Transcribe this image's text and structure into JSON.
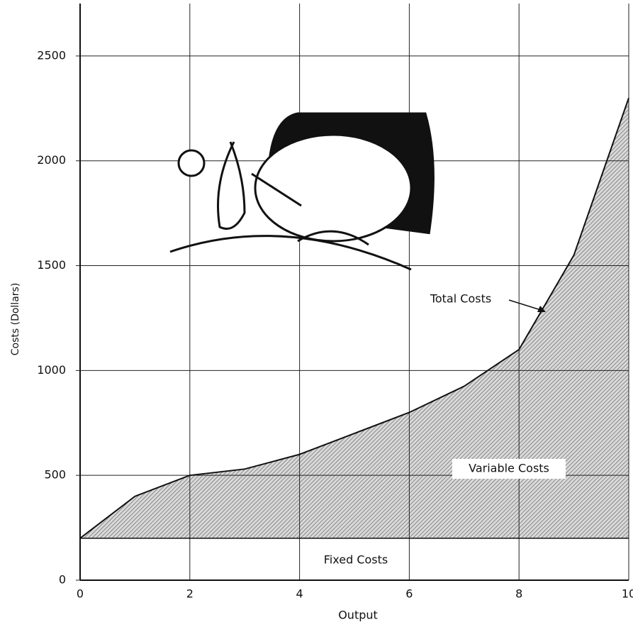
{
  "chart_data": {
    "type": "area",
    "xlabel": "Output",
    "ylabel": "Costs (Dollars)",
    "x": [
      0,
      1,
      2,
      3,
      4,
      5,
      6,
      7,
      8,
      9,
      10
    ],
    "series": [
      {
        "name": "Total Costs",
        "color": "#111111",
        "values": [
          200,
          400,
          500,
          530,
          600,
          700,
          800,
          925,
          1100,
          1550,
          2300
        ]
      }
    ],
    "fixed_costs": 200,
    "annotations": [
      "Total Costs",
      "Variable Costs",
      "Fixed Costs"
    ],
    "xlim": [
      0,
      10
    ],
    "xticks": [
      0,
      2,
      4,
      6,
      8,
      10
    ],
    "ylim": [
      0,
      2750
    ],
    "yticks": [
      0,
      500,
      1000,
      1500,
      2000,
      2500
    ],
    "grid": true
  }
}
